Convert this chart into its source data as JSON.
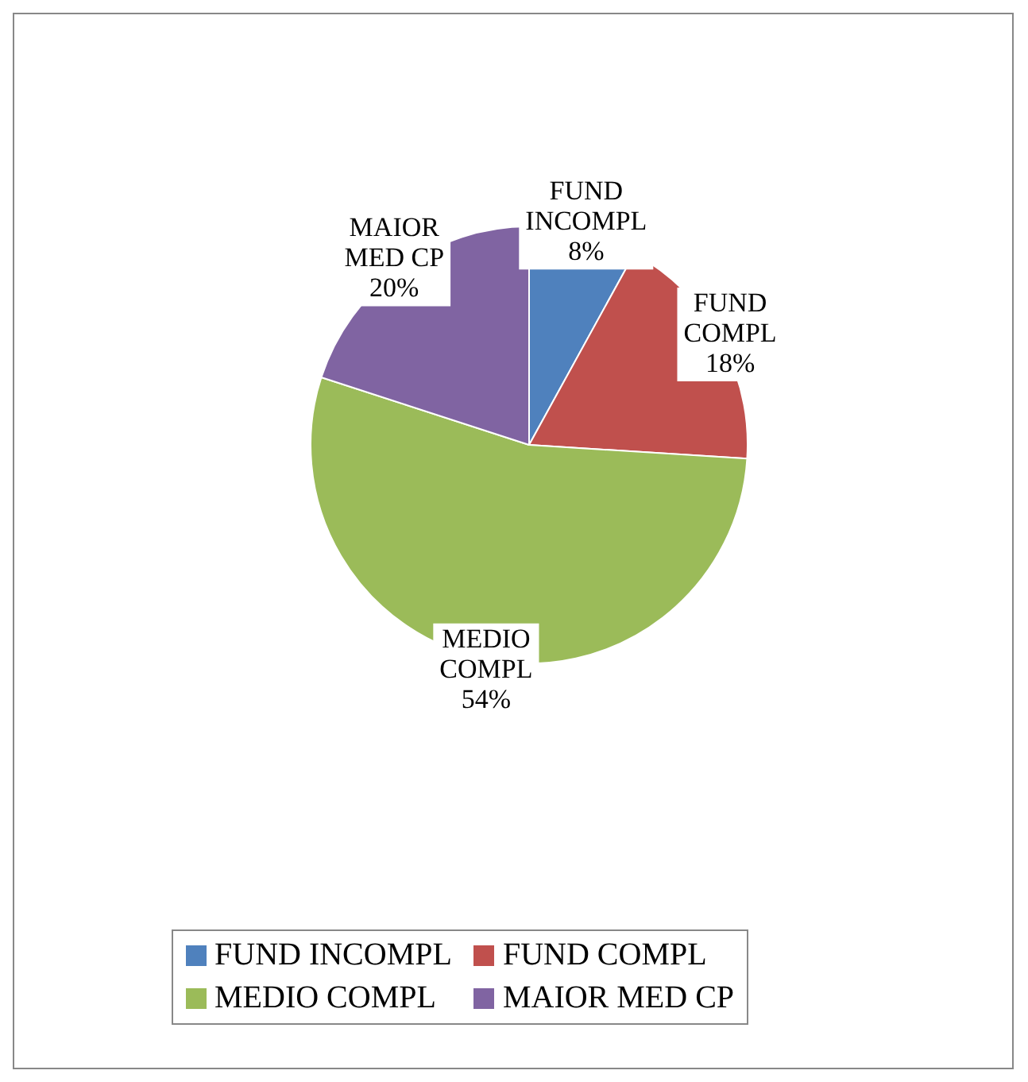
{
  "chart_data": {
    "type": "pie",
    "categories": [
      "FUND INCOMPL",
      "FUND COMPL",
      "MEDIO COMPL",
      "MAIOR MED CP"
    ],
    "values": [
      8,
      18,
      54,
      20
    ],
    "colors": [
      "#4f81bd",
      "#c0504d",
      "#9bbb59",
      "#8064a2"
    ],
    "value_labels": [
      "8%",
      "18%",
      "54%",
      "20%"
    ],
    "legend": "bottom"
  }
}
